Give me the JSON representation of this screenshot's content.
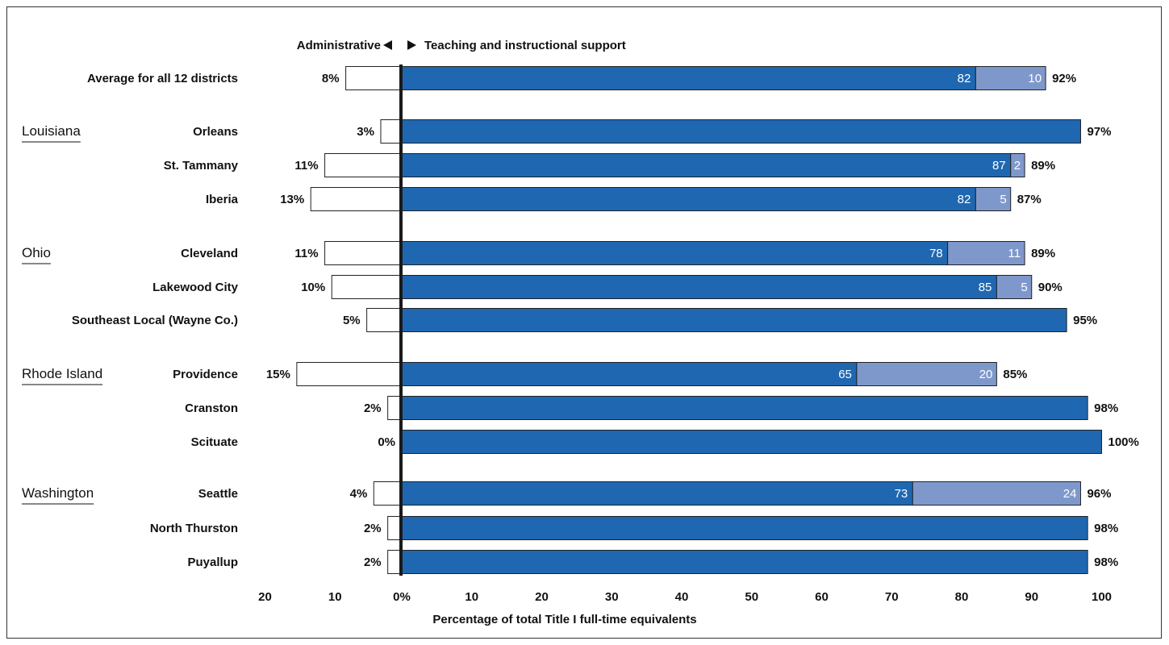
{
  "chart_data": {
    "type": "bar",
    "orientation": "horizontal",
    "xlabel": "Percentage of total Title I full-time equivalents",
    "header": {
      "left": "Administrative",
      "right": "Teaching and instructional support"
    },
    "x_ticks_left": [
      "20",
      "10"
    ],
    "x_ticks_right": [
      "0%",
      "10",
      "20",
      "30",
      "40",
      "50",
      "60",
      "70",
      "80",
      "90",
      "100"
    ],
    "xlim": [
      -20,
      100
    ],
    "colors": {
      "teachers": "#1f67b1",
      "instructional_support": "#7f98cc",
      "administrative": "#ffffff",
      "axis": "#1a1a1a"
    },
    "rows": [
      {
        "group": "",
        "label": "Average for all 12 districts",
        "admin": 8,
        "admin_label": "8%",
        "teachers": 82,
        "support": 10,
        "teachers_label": "82",
        "support_label": "10",
        "total_label": "92%"
      },
      {
        "group": "Louisiana",
        "label": "Orleans",
        "admin": 3,
        "admin_label": "3%",
        "teachers": 97,
        "support": 0,
        "teachers_label": "",
        "support_label": "",
        "total_label": "97%"
      },
      {
        "group": "",
        "label": "St. Tammany",
        "admin": 11,
        "admin_label": "11%",
        "teachers": 87,
        "support": 2,
        "teachers_label": "87",
        "support_label": "2",
        "total_label": "89%"
      },
      {
        "group": "",
        "label": "Iberia",
        "admin": 13,
        "admin_label": "13%",
        "teachers": 82,
        "support": 5,
        "teachers_label": "82",
        "support_label": "5",
        "total_label": "87%"
      },
      {
        "group": "Ohio",
        "label": "Cleveland",
        "admin": 11,
        "admin_label": "11%",
        "teachers": 78,
        "support": 11,
        "teachers_label": "78",
        "support_label": "11",
        "total_label": "89%"
      },
      {
        "group": "",
        "label": "Lakewood City",
        "admin": 10,
        "admin_label": "10%",
        "teachers": 85,
        "support": 5,
        "teachers_label": "85",
        "support_label": "5",
        "total_label": "90%"
      },
      {
        "group": "",
        "label": "Southeast Local (Wayne Co.)",
        "admin": 5,
        "admin_label": "5%",
        "teachers": 95,
        "support": 0,
        "teachers_label": "",
        "support_label": "",
        "total_label": "95%"
      },
      {
        "group": "Rhode Island",
        "label": "Providence",
        "admin": 15,
        "admin_label": "15%",
        "teachers": 65,
        "support": 20,
        "teachers_label": "65",
        "support_label": "20",
        "total_label": "85%"
      },
      {
        "group": "",
        "label": "Cranston",
        "admin": 2,
        "admin_label": "2%",
        "teachers": 98,
        "support": 0,
        "teachers_label": "",
        "support_label": "",
        "total_label": "98%"
      },
      {
        "group": "",
        "label": "Scituate",
        "admin": 0,
        "admin_label": "0%",
        "teachers": 100,
        "support": 0,
        "teachers_label": "",
        "support_label": "",
        "total_label": "100%"
      },
      {
        "group": "Washington",
        "label": "Seattle",
        "admin": 4,
        "admin_label": "4%",
        "teachers": 73,
        "support": 24,
        "teachers_label": "73",
        "support_label": "24",
        "total_label": "96%"
      },
      {
        "group": "",
        "label": "North Thurston",
        "admin": 2,
        "admin_label": "2%",
        "teachers": 98,
        "support": 0,
        "teachers_label": "",
        "support_label": "",
        "total_label": "98%"
      },
      {
        "group": "",
        "label": "Puyallup",
        "admin": 2,
        "admin_label": "2%",
        "teachers": 98,
        "support": 0,
        "teachers_label": "",
        "support_label": "",
        "total_label": "98%"
      }
    ]
  }
}
